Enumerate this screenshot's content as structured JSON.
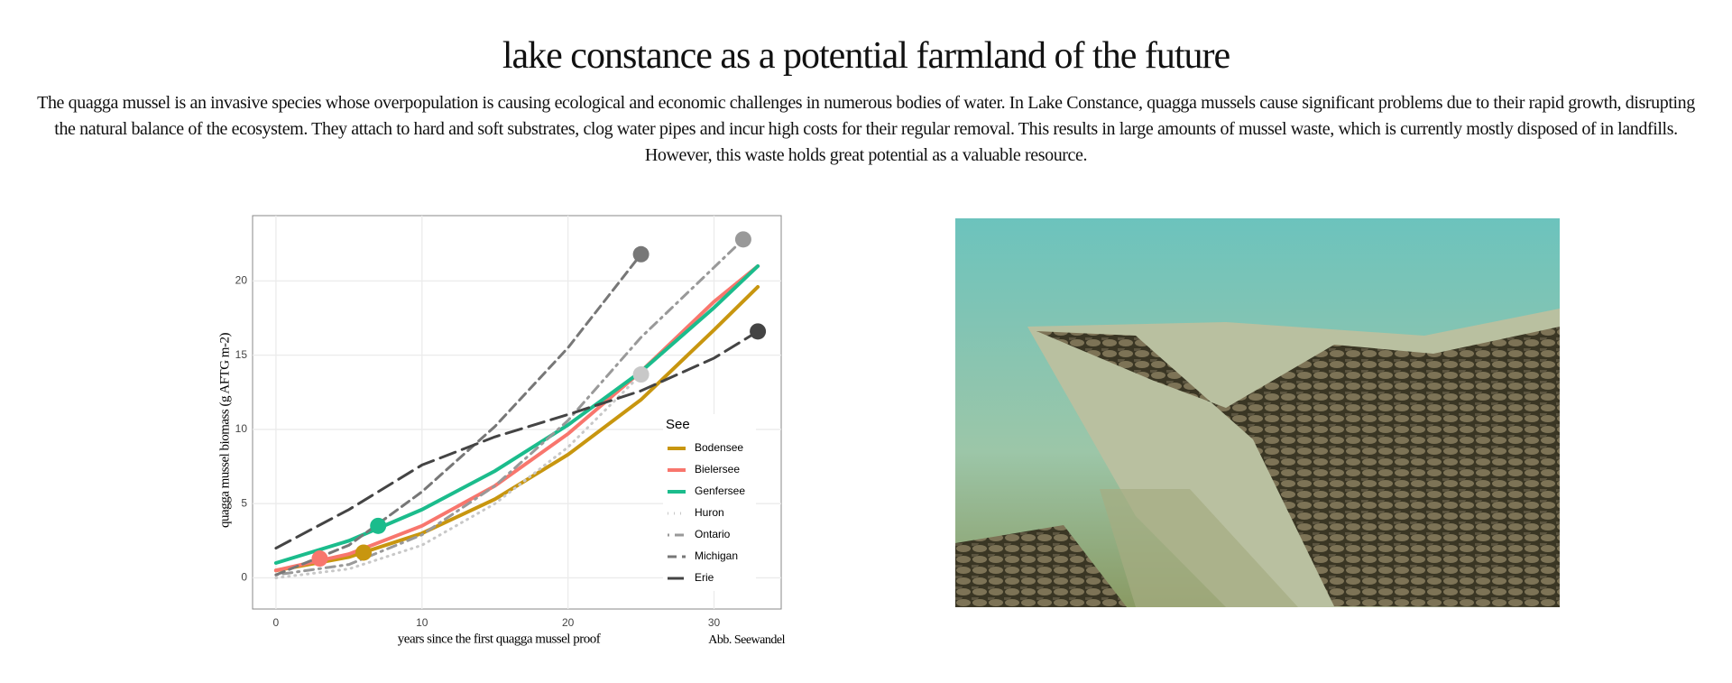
{
  "header": {
    "title": "lake constance as a potential farmland of the future",
    "text": "The quagga mussel is an invasive species whose overpopulation is causing ecological and economic challenges in numerous bodies of water. In Lake Constance, quagga mussels cause significant problems due to their rapid growth, disrupting the natural balance of the ecosystem. They attach to hard and soft substrates, clog water pipes and incur high costs for their regular removal. This results in large amounts of mussel waste, which is currently mostly disposed of in landfills. However, this waste holds great potential as a valuable resource."
  },
  "chart_data": {
    "type": "line",
    "xlabel": "years since the first quagga mussel proof",
    "ylabel": "quagga mussel biomass (g AFTG m-2)",
    "legend_title": "See",
    "xlim": [
      -1.6,
      34.6
    ],
    "ylim": [
      -2.1,
      24.4
    ],
    "xticks": [
      0,
      10,
      20,
      30
    ],
    "yticks": [
      0,
      5,
      10,
      15,
      20
    ],
    "grid": true,
    "series": [
      {
        "name": "Bodensee",
        "color": "#c8960f",
        "dash": "solid",
        "x": [
          0,
          5,
          10,
          15,
          20,
          25,
          30,
          33
        ],
        "values": [
          0.5,
          1.4,
          3.0,
          5.3,
          8.3,
          12.0,
          16.7,
          19.6
        ],
        "point": {
          "x": 6,
          "y": 1.7
        }
      },
      {
        "name": "Bielersee",
        "color": "#f8766d",
        "dash": "solid",
        "x": [
          0,
          5,
          10,
          15,
          20,
          25,
          30,
          33
        ],
        "values": [
          0.5,
          1.6,
          3.5,
          6.2,
          9.7,
          13.9,
          18.6,
          21.0
        ],
        "point": {
          "x": 3,
          "y": 1.3
        }
      },
      {
        "name": "Genfersee",
        "color": "#1bbc8c",
        "dash": "solid",
        "x": [
          0,
          5,
          10,
          15,
          20,
          25,
          30,
          33
        ],
        "values": [
          1.0,
          2.5,
          4.6,
          7.2,
          10.3,
          13.9,
          18.2,
          21.0
        ],
        "point": {
          "x": 7,
          "y": 3.5
        }
      },
      {
        "name": "Huron",
        "color": "#c8c8c8",
        "dash": "dotted",
        "x": [
          0,
          5,
          10,
          15,
          20,
          25
        ],
        "values": [
          0,
          0.6,
          2.2,
          5.0,
          8.8,
          13.7
        ],
        "point": {
          "x": 25,
          "y": 13.7
        }
      },
      {
        "name": "Ontario",
        "color": "#999999",
        "dash": "dotdash",
        "x": [
          0,
          5,
          10,
          15,
          20,
          25,
          32
        ],
        "values": [
          0.2,
          0.9,
          2.9,
          6.2,
          10.6,
          16.2,
          22.8
        ],
        "point": {
          "x": 32,
          "y": 22.8
        }
      },
      {
        "name": "Michigan",
        "color": "#777777",
        "dash": "dashed",
        "x": [
          0,
          5,
          10,
          15,
          20,
          25
        ],
        "values": [
          0.2,
          2.2,
          5.8,
          10.2,
          15.5,
          21.8
        ],
        "point": {
          "x": 25,
          "y": 21.8
        }
      },
      {
        "name": "Erie",
        "color": "#444444",
        "dash": "longdash",
        "x": [
          0,
          5,
          10,
          15,
          20,
          25,
          30,
          33
        ],
        "values": [
          2.0,
          4.6,
          7.6,
          9.5,
          11.0,
          12.6,
          14.8,
          16.6
        ],
        "point": {
          "x": 33,
          "y": 16.6
        }
      }
    ]
  },
  "caption": "Abb. Seewandel"
}
